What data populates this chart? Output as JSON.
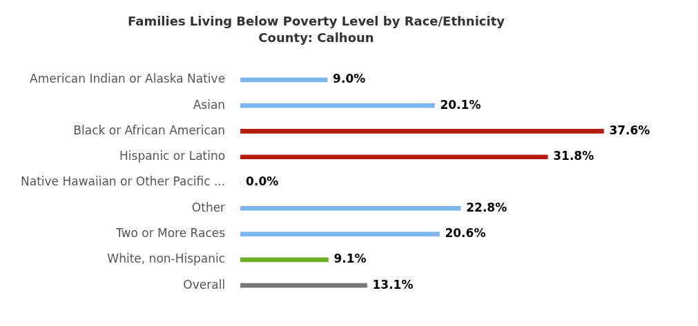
{
  "chart_data": {
    "type": "bar",
    "orientation": "horizontal",
    "title": "Families Living Below Poverty Level by Race/Ethnicity",
    "subtitle": "County: Calhoun",
    "categories": [
      "American Indian or Alaska Native",
      "Asian",
      "Black or African American",
      "Hispanic or Latino",
      "Native Hawaiian or Other Pacific ...",
      "Other",
      "Two or More Races",
      "White, non-Hispanic",
      "Overall"
    ],
    "values": [
      9.0,
      20.1,
      37.6,
      31.8,
      0.0,
      22.8,
      20.6,
      9.1,
      13.1
    ],
    "value_labels": [
      "9.0%",
      "20.1%",
      "37.6%",
      "31.8%",
      "0.0%",
      "22.8%",
      "20.6%",
      "9.1%",
      "13.1%"
    ],
    "colors": [
      "#7cb5ec",
      "#7cb5ec",
      "#b51a0a",
      "#b51a0a",
      "#7cb5ec",
      "#7cb5ec",
      "#7cb5ec",
      "#6aaf23",
      "#777777"
    ],
    "grid": false,
    "legend": false
  }
}
